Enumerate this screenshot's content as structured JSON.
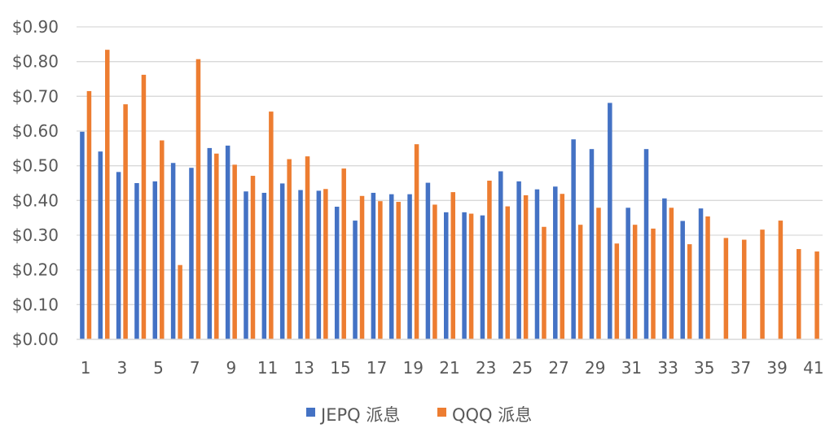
{
  "chart_data": {
    "type": "bar",
    "title": "",
    "xlabel": "",
    "ylabel": "",
    "ylim": [
      0,
      0.9
    ],
    "y_ticks": [
      "$0.00",
      "$0.10",
      "$0.20",
      "$0.30",
      "$0.40",
      "$0.50",
      "$0.60",
      "$0.70",
      "$0.80",
      "$0.90"
    ],
    "x_tick_labels": [
      "1",
      "3",
      "5",
      "7",
      "9",
      "11",
      "13",
      "15",
      "17",
      "19",
      "21",
      "23",
      "25",
      "27",
      "29",
      "31",
      "33",
      "35",
      "37",
      "39",
      "41"
    ],
    "categories": [
      1,
      2,
      3,
      4,
      5,
      6,
      7,
      8,
      9,
      10,
      11,
      12,
      13,
      14,
      15,
      16,
      17,
      18,
      19,
      20,
      21,
      22,
      23,
      24,
      25,
      26,
      27,
      28,
      29,
      30,
      31,
      32,
      33,
      34,
      35,
      36,
      37,
      38,
      39,
      40,
      41
    ],
    "grid": true,
    "legend_position": "bottom",
    "colors": {
      "JEPQ": "#4472C4",
      "QQQ": "#ED7D31",
      "grid": "#D9D9D9",
      "text": "#595959"
    },
    "series": [
      {
        "name": "JEPQ 派息",
        "values": [
          0.598,
          0.541,
          0.482,
          0.45,
          0.455,
          0.508,
          0.494,
          0.551,
          0.558,
          0.426,
          0.422,
          0.449,
          0.43,
          0.428,
          0.382,
          0.342,
          0.422,
          0.418,
          0.418,
          0.451,
          0.366,
          0.366,
          0.357,
          0.484,
          0.455,
          0.432,
          0.44,
          0.576,
          0.548,
          0.681,
          0.379,
          0.548,
          0.406,
          0.341,
          0.377,
          null,
          null,
          null,
          null,
          null,
          null
        ]
      },
      {
        "name": "QQQ 派息",
        "values": [
          0.715,
          0.834,
          0.677,
          0.762,
          0.573,
          0.214,
          0.807,
          0.535,
          0.503,
          0.471,
          0.656,
          0.519,
          0.527,
          0.433,
          0.492,
          0.413,
          0.398,
          0.396,
          0.562,
          0.388,
          0.424,
          0.362,
          0.457,
          0.383,
          0.415,
          0.324,
          0.419,
          0.33,
          0.379,
          0.276,
          0.33,
          0.319,
          0.379,
          0.274,
          0.354,
          0.292,
          0.287,
          0.316,
          0.342,
          0.26,
          0.253
        ]
      }
    ]
  }
}
